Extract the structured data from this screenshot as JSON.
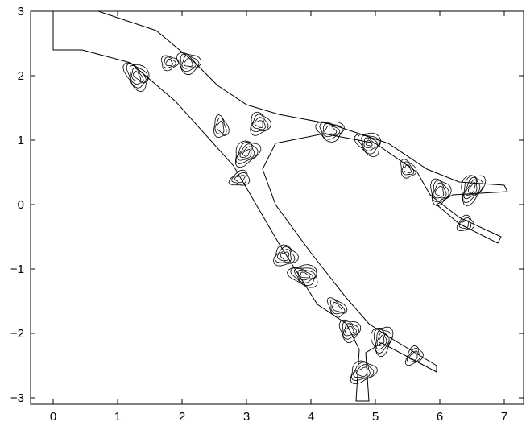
{
  "chart_data": {
    "type": "contour",
    "title": "",
    "xlabel": "",
    "ylabel": "",
    "xlim": [
      -0.35,
      7.3
    ],
    "ylim": [
      -3.1,
      3.0
    ],
    "grid": false,
    "x_ticks": [
      0,
      1,
      2,
      3,
      4,
      5,
      6,
      7
    ],
    "y_ticks": [
      3,
      2,
      1,
      0,
      -1,
      -2,
      -3
    ],
    "x_tick_labels": [
      "0",
      "1",
      "2",
      "3",
      "4",
      "5",
      "6",
      "7"
    ],
    "y_tick_labels": [
      "3",
      "2",
      "1",
      "0",
      "−1",
      "−2",
      "−3"
    ],
    "domain_outline": [
      [
        [
          0,
          3.0
        ],
        [
          0,
          2.4
        ],
        [
          0.45,
          2.4
        ],
        [
          1.2,
          2.2
        ],
        [
          1.9,
          1.6
        ],
        [
          2.8,
          0.6
        ],
        [
          3.5,
          -0.6
        ],
        [
          4.1,
          -1.55
        ],
        [
          4.55,
          -1.85
        ],
        [
          4.75,
          -2.25
        ],
        [
          4.7,
          -3.05
        ],
        [
          4.9,
          -3.05
        ],
        [
          4.85,
          -2.3
        ],
        [
          5.1,
          -2.15
        ],
        [
          5.95,
          -2.6
        ],
        [
          5.95,
          -2.5
        ],
        [
          5.2,
          -2.05
        ],
        [
          4.9,
          -1.85
        ],
        [
          4.55,
          -1.45
        ],
        [
          4.0,
          -0.75
        ],
        [
          3.45,
          0.0
        ],
        [
          3.25,
          0.55
        ],
        [
          3.45,
          0.95
        ],
        [
          4.2,
          1.1
        ],
        [
          5.0,
          0.95
        ],
        [
          5.65,
          0.5
        ],
        [
          5.85,
          0.15
        ],
        [
          6.3,
          -0.2
        ],
        [
          6.95,
          -0.5
        ],
        [
          6.9,
          -0.6
        ],
        [
          6.3,
          -0.3
        ],
        [
          5.95,
          0.0
        ],
        [
          6.2,
          0.15
        ],
        [
          7.05,
          0.2
        ],
        [
          7.0,
          0.3
        ],
        [
          6.3,
          0.35
        ],
        [
          5.8,
          0.55
        ],
        [
          5.2,
          0.95
        ],
        [
          4.3,
          1.25
        ],
        [
          3.5,
          1.4
        ],
        [
          3.0,
          1.55
        ],
        [
          2.55,
          1.85
        ],
        [
          2.2,
          2.2
        ],
        [
          1.6,
          2.7
        ],
        [
          0.7,
          3.0
        ],
        [
          0,
          3.0
        ]
      ]
    ],
    "contour_centers": [
      [
        1.8,
        2.2
      ],
      [
        2.1,
        2.2
      ],
      [
        1.3,
        2.0
      ],
      [
        2.6,
        1.2
      ],
      [
        3.2,
        1.25
      ],
      [
        3.0,
        0.8
      ],
      [
        2.9,
        0.4
      ],
      [
        4.3,
        1.15
      ],
      [
        4.9,
        0.95
      ],
      [
        5.5,
        0.55
      ],
      [
        6.0,
        0.2
      ],
      [
        6.5,
        0.25
      ],
      [
        6.4,
        -0.3
      ],
      [
        3.6,
        -0.8
      ],
      [
        3.9,
        -1.1
      ],
      [
        4.4,
        -1.6
      ],
      [
        4.6,
        -1.95
      ],
      [
        5.1,
        -2.1
      ],
      [
        5.6,
        -2.35
      ],
      [
        4.8,
        -2.6
      ]
    ]
  }
}
